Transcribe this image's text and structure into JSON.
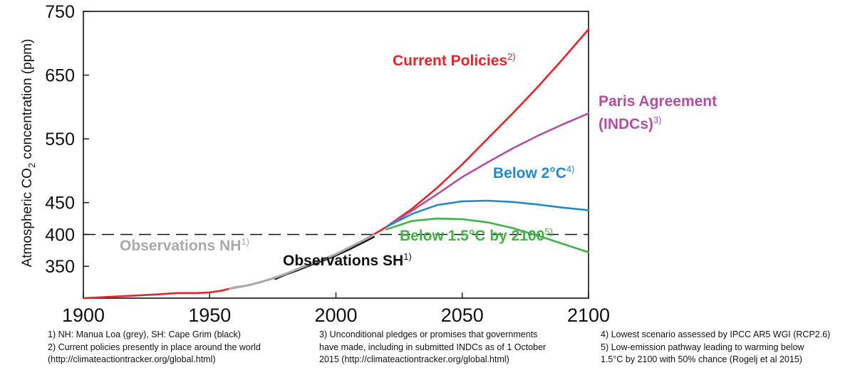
{
  "chart_data": {
    "type": "line",
    "xlim": [
      1900,
      2100
    ],
    "ylim": [
      300,
      750
    ],
    "x_ticks": [
      1900,
      1950,
      2000,
      2050,
      2100
    ],
    "y_ticks": [
      350,
      400,
      450,
      550,
      650,
      750
    ],
    "ylabel_prefix": "Atmospheric CO",
    "ylabel_sub": "2",
    "ylabel_suffix": " concentration (ppm)",
    "reference_line": {
      "y": 400,
      "style": "dashed"
    },
    "series": [
      {
        "name": "Current Policies",
        "note": "2)",
        "color": "#e8242b",
        "x": [
          1900,
          1910,
          1920,
          1930,
          1937,
          1945,
          1950,
          1955,
          1960,
          1965,
          1970,
          1975,
          1980,
          1985,
          1990,
          1995,
          2000,
          2005,
          2010,
          2015,
          2020,
          2030,
          2040,
          2050,
          2060,
          2070,
          2080,
          2090,
          2100
        ],
        "y": [
          300,
          302,
          304,
          306,
          308,
          308,
          309,
          312,
          317,
          320,
          325,
          331,
          338,
          345,
          353,
          361,
          369,
          379,
          389,
          400,
          412,
          440,
          473,
          510,
          550,
          590,
          632,
          676,
          722
        ]
      },
      {
        "name": "Paris Agreement (INDCs)",
        "note": "3)",
        "color": "#b04fa3",
        "x": [
          2020,
          2030,
          2040,
          2050,
          2060,
          2070,
          2080,
          2090,
          2100
        ],
        "y": [
          412,
          437,
          463,
          490,
          513,
          535,
          555,
          573,
          590
        ]
      },
      {
        "name": "Below 2°C",
        "note": "4)",
        "color": "#2389c9",
        "x": [
          2020,
          2030,
          2040,
          2050,
          2060,
          2070,
          2080,
          2090,
          2100
        ],
        "y": [
          412,
          432,
          446,
          452,
          453,
          451,
          447,
          442,
          438
        ]
      },
      {
        "name": "Below 1.5°C by 2100",
        "note": "5)",
        "color": "#44b048",
        "x": [
          2020,
          2030,
          2040,
          2050,
          2060,
          2070,
          2080,
          2090,
          2100
        ],
        "y": [
          408,
          421,
          425,
          424,
          419,
          410,
          398,
          385,
          372
        ]
      },
      {
        "name": "Observations NH",
        "note": "1)",
        "color": "#aaaaaa",
        "x": [
          1958,
          1965,
          1970,
          1975,
          1980,
          1985,
          1990,
          1995,
          2000,
          2005,
          2010,
          2015
        ],
        "y": [
          315,
          320,
          325,
          331,
          338,
          346,
          354,
          361,
          369,
          379,
          389,
          399
        ]
      },
      {
        "name": "Observations SH",
        "note": "1)",
        "color": "#111111",
        "x": [
          1976,
          1980,
          1985,
          1990,
          1995,
          2000,
          2005,
          2010,
          2015
        ],
        "y": [
          330,
          337,
          344,
          352,
          359,
          367,
          376,
          386,
          396
        ]
      }
    ]
  },
  "footnotes": {
    "col1": "1) NH: Manua Loa (grey), SH: Cape Grim (black)\n2) Current policies presently in place around the world\n(http://climateactiontracker.org/global.html)",
    "col2": "3) Unconditional pledges or promises that governments\nhave made, including in submitted INDCs as of 1 October\n2015 (http://climateactiontracker.org/global.html)",
    "col3": "4) Lowest scenario assessed by IPCC AR5 WGI (RCP2.6)\n5) Low-emission pathway leading to warming below\n1.5°C by 2100 with 50% chance (Rogelj et al 2015)"
  }
}
